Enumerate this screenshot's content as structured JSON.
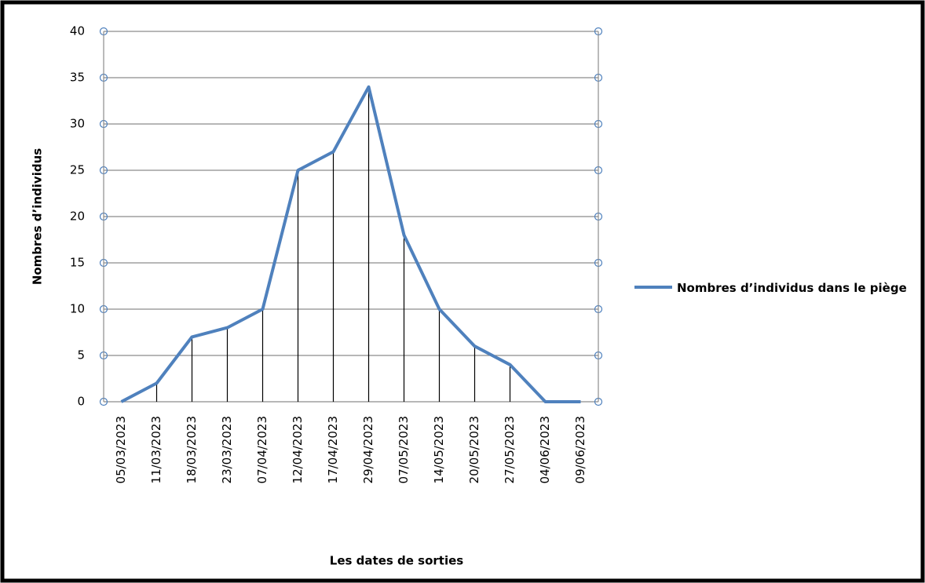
{
  "chart_data": {
    "type": "line",
    "categories": [
      "05/03/2023",
      "11/03/2023",
      "18/03/2023",
      "23/03/2023",
      "07/04/2023",
      "12/04/2023",
      "17/04/2023",
      "29/04/2023",
      "07/05/2023",
      "14/05/2023",
      "20/05/2023",
      "27/05/2023",
      "04/06/2023",
      "09/06/2023"
    ],
    "series": [
      {
        "name": "Nombres d’individus  dans le piège",
        "color": "#4f81bd",
        "values": [
          0,
          2,
          7,
          8,
          10,
          25,
          27,
          34,
          18,
          10,
          6,
          4,
          0,
          0
        ]
      }
    ],
    "x_label": "Les dates de sorties",
    "y_label": "Nombres d’individus",
    "ylim": [
      0,
      40
    ],
    "yticks": [
      0,
      5,
      10,
      15,
      20,
      25,
      30,
      35,
      40
    ],
    "grid": true,
    "drop_lines": true,
    "legend": "right"
  }
}
